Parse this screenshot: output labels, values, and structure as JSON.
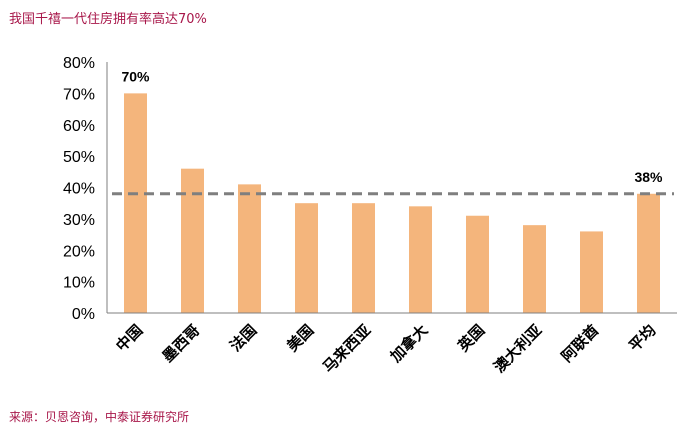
{
  "header": {
    "title": "我国千禧一代住房拥有率高达70%"
  },
  "footer": {
    "source": "来源：贝恩咨询，中泰证券研究所"
  },
  "chart_data": {
    "type": "bar",
    "categories": [
      "中国",
      "墨西哥",
      "法国",
      "美国",
      "马来西亚",
      "加拿大",
      "英国",
      "澳大利亚",
      "阿联酋",
      "平均"
    ],
    "values": [
      70,
      46,
      41,
      35,
      35,
      34,
      31,
      28,
      26,
      38
    ],
    "value_unit": "%",
    "ylim": [
      0,
      80
    ],
    "yticks": [
      "0%",
      "10%",
      "20%",
      "30%",
      "40%",
      "50%",
      "60%",
      "70%",
      "80%"
    ],
    "reference_line": {
      "value": 38,
      "style": "dashed"
    },
    "data_labels": [
      {
        "category": "中国",
        "text": "70%"
      },
      {
        "category": "平均",
        "text": "38%"
      }
    ],
    "grid": false,
    "legend": "none",
    "colors": {
      "bar": "#f4b57c",
      "reference_line": "#7f7f7f",
      "axis": "#7f7f7f",
      "title": "#a8174a"
    }
  }
}
